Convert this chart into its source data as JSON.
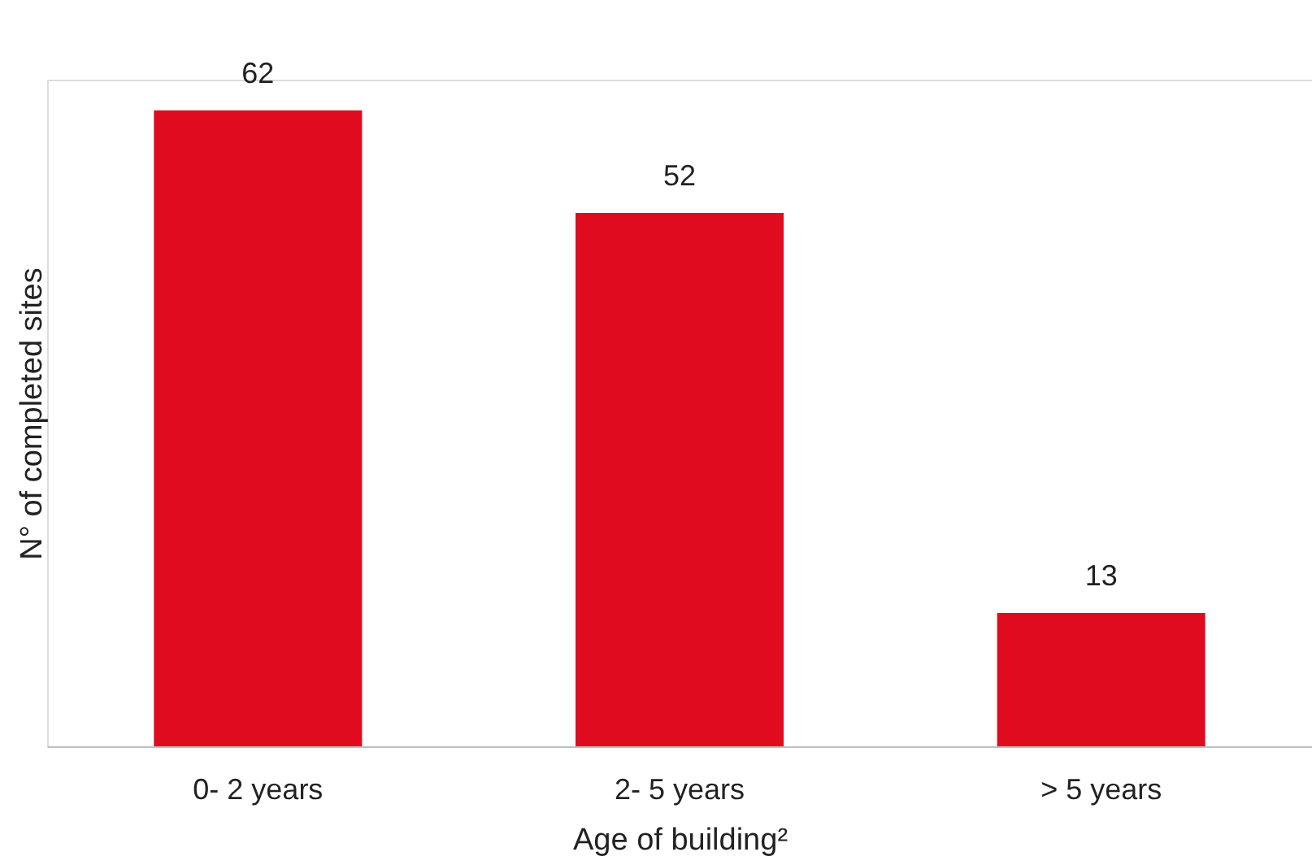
{
  "chart_data": {
    "type": "bar",
    "xlabel": "Age of building²",
    "ylabel": "N° of completed sites",
    "categories": [
      "0- 2 years",
      "2- 5 years",
      "> 5 years"
    ],
    "values": [
      62,
      52,
      13
    ],
    "color": "#e00b1e",
    "data_labels": true
  }
}
